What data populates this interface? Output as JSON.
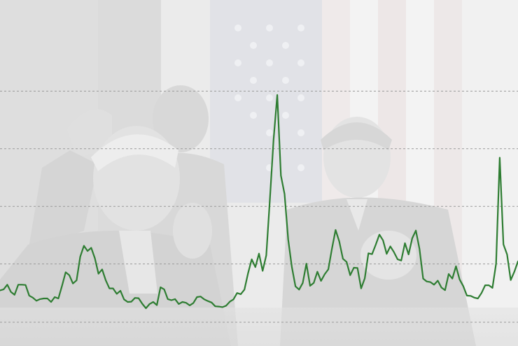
{
  "chart_data": {
    "type": "line",
    "title": "",
    "xlabel": "",
    "ylabel": "",
    "grid": true,
    "ylim": [
      0,
      100
    ],
    "gridlines": [
      20,
      40,
      60,
      80
    ],
    "line_color": "#2e7d32",
    "series": [
      {
        "values": [
          10.8,
          11.2,
          12.8,
          10.3,
          9.3,
          12.8,
          12.8,
          12.7,
          9.0,
          8.3,
          7.2,
          7.8,
          8.0,
          8.0,
          6.8,
          8.5,
          8.0,
          12.4,
          17.1,
          16.1,
          13.2,
          14.3,
          22.5,
          26.3,
          24.5,
          25.6,
          22.0,
          16.6,
          18.1,
          14.3,
          11.5,
          11.5,
          9.6,
          10.7,
          7.7,
          6.8,
          6.9,
          8.2,
          8.1,
          6.2,
          4.6,
          6.1,
          6.8,
          5.7,
          11.9,
          11.2,
          7.8,
          7.4,
          7.8,
          6.1,
          6.8,
          6.5,
          5.6,
          6.4,
          8.5,
          8.7,
          7.7,
          7.1,
          6.6,
          5.3,
          5.2,
          5.0,
          5.5,
          6.9,
          7.7,
          9.9,
          9.5,
          11.1,
          16.8,
          21.6,
          18.9,
          23.6,
          17.6,
          23.0,
          42.6,
          63.1,
          78.7,
          50.7,
          44.3,
          28.5,
          19.0,
          12.2,
          11.1,
          13.4,
          20.1,
          12.4,
          13.4,
          17.3,
          14.1,
          16.4,
          18.1,
          25.3,
          31.8,
          27.9,
          21.8,
          20.7,
          16.1,
          18.7,
          18.6,
          11.5,
          15.0,
          23.7,
          23.4,
          26.7,
          30.2,
          28.2,
          23.5,
          26.1,
          24.1,
          21.6,
          21.2,
          27.2,
          23.3,
          28.9,
          31.6,
          25.2,
          14.9,
          13.9,
          13.7,
          12.8,
          14.2,
          11.8,
          10.9,
          16.5,
          14.9,
          19.2,
          14.6,
          12.3,
          9.0,
          8.9,
          8.3,
          8.0,
          9.9,
          12.6,
          12.6,
          11.7,
          20.1,
          56.9,
          26.8,
          23.3,
          14.4,
          17.3,
          20.9
        ],
        "x_start": 0,
        "x_end": 740
      }
    ]
  },
  "photo": {
    "description_icon": "photo-background"
  }
}
